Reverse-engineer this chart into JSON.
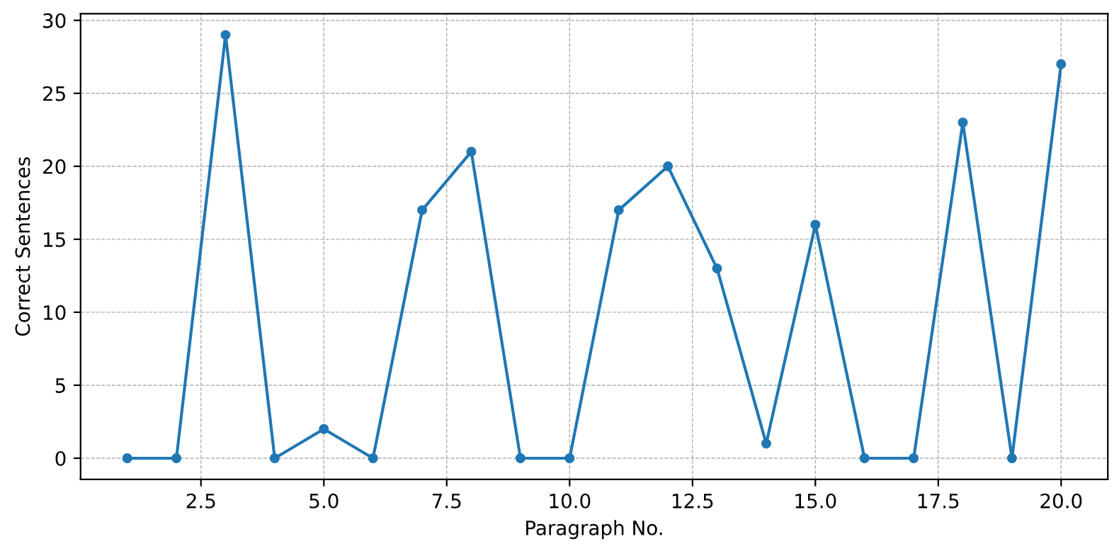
{
  "chart_data": {
    "type": "line",
    "xlabel": "Paragraph No.",
    "ylabel": "Correct Sentences",
    "x": [
      1,
      2,
      3,
      4,
      5,
      6,
      7,
      8,
      9,
      10,
      11,
      12,
      13,
      14,
      15,
      16,
      17,
      18,
      19,
      20
    ],
    "series": [
      {
        "color": "#1f77b4",
        "values": [
          0,
          0,
          29,
          0,
          2,
          0,
          17,
          21,
          0,
          0,
          17,
          20,
          13,
          1,
          16,
          0,
          0,
          23,
          0,
          27
        ]
      }
    ],
    "xlim": [
      0.05,
      20.95
    ],
    "ylim": [
      -1.45,
      30.45
    ],
    "xticks": [
      {
        "value": 2.5,
        "label": "2.5"
      },
      {
        "value": 5,
        "label": "5.0"
      },
      {
        "value": 7.5,
        "label": "7.5"
      },
      {
        "value": 10,
        "label": "10.0"
      },
      {
        "value": 12.5,
        "label": "12.5"
      },
      {
        "value": 15,
        "label": "15.0"
      },
      {
        "value": 17.5,
        "label": "17.5"
      },
      {
        "value": 20,
        "label": "20.0"
      }
    ],
    "yticks": [
      0,
      5,
      10,
      15,
      20,
      25,
      30
    ],
    "grid": true,
    "marker": "circle",
    "line_style": "solid"
  }
}
